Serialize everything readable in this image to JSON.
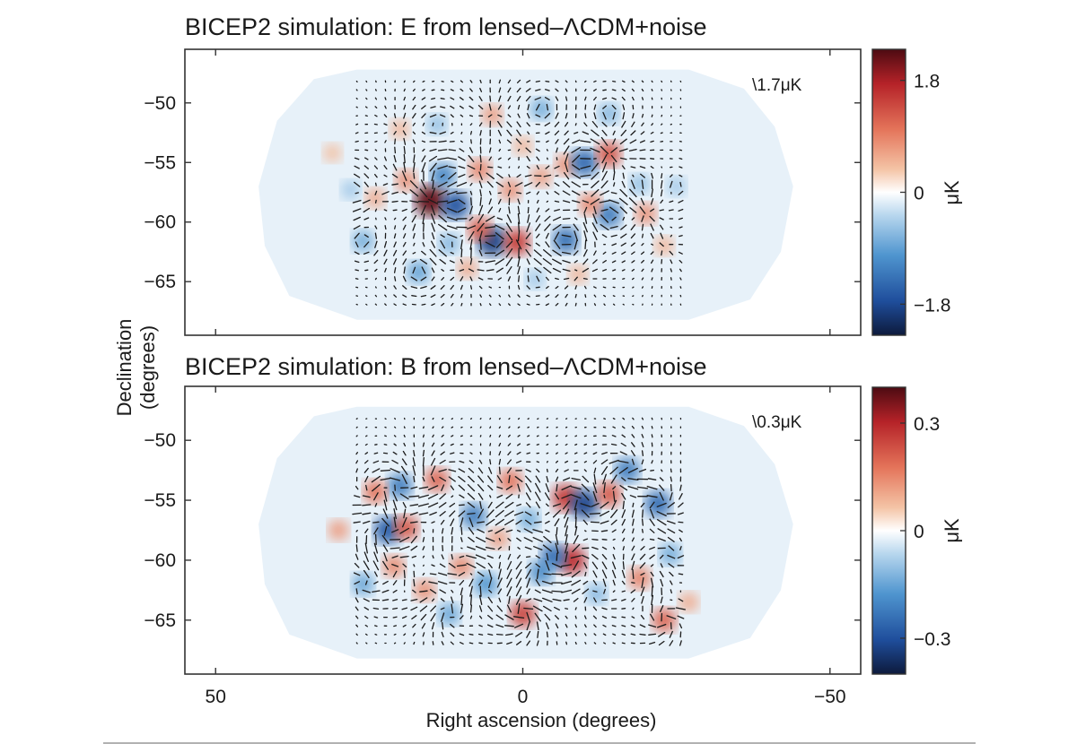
{
  "chart_data": {
    "type": "heatmap",
    "shared_axes": {
      "xlabel": "Right ascension (degrees)",
      "ylabel_line1": "Declination",
      "ylabel_line2": "(degrees)",
      "x_ticks": [
        50,
        0,
        -50
      ],
      "x_tick_labels": [
        "50",
        "0",
        "−50"
      ],
      "xlim": [
        55,
        -55
      ],
      "y_ticks": [
        -50,
        -55,
        -60,
        -65
      ],
      "y_tick_labels": [
        "−50",
        "−55",
        "−60",
        "−65"
      ],
      "ylim": [
        -69.5,
        -45.5
      ]
    },
    "panels": [
      {
        "title": "BICEP2 simulation: E from lensed–ΛCDM+noise",
        "annotation": "\\1.7μK",
        "colorbar_label": "μK",
        "colorbar_ticks": [
          1.8,
          0,
          -1.8
        ],
        "colorbar_tick_labels": [
          "1.8",
          "0",
          "−1.8"
        ],
        "colorbar_range": [
          -2.3,
          2.3
        ],
        "blobs": [
          {
            "ra": 15,
            "dec": -58.2,
            "value": 2.2
          },
          {
            "ra": 11,
            "dec": -58.6,
            "value": -1.7
          },
          {
            "ra": 5,
            "dec": -61.6,
            "value": -1.9
          },
          {
            "ra": 1,
            "dec": -61.7,
            "value": 1.5
          },
          {
            "ra": 7,
            "dec": -60.6,
            "value": 1.2
          },
          {
            "ra": 13,
            "dec": -56.1,
            "value": -1.2
          },
          {
            "ra": 7,
            "dec": -55.6,
            "value": 0.9
          },
          {
            "ra": 2,
            "dec": -57.3,
            "value": 0.8
          },
          {
            "ra": -3,
            "dec": -56.2,
            "value": 0.7
          },
          {
            "ra": -7,
            "dec": -55.2,
            "value": 0.8
          },
          {
            "ra": -10,
            "dec": -55.0,
            "value": -1.5
          },
          {
            "ra": -14,
            "dec": -54.3,
            "value": 1.3
          },
          {
            "ra": -7,
            "dec": -61.5,
            "value": -1.4
          },
          {
            "ra": -14,
            "dec": -59.4,
            "value": -1.3
          },
          {
            "ra": -11,
            "dec": -58.5,
            "value": 0.9
          },
          {
            "ra": -20,
            "dec": -59.3,
            "value": 0.8
          },
          {
            "ra": 19,
            "dec": -56.5,
            "value": 0.8
          },
          {
            "ra": 24,
            "dec": -58.0,
            "value": 0.6
          },
          {
            "ra": 26,
            "dec": -61.6,
            "value": -0.8
          },
          {
            "ra": 17,
            "dec": -64.2,
            "value": -0.9
          },
          {
            "ra": 12,
            "dec": -61.8,
            "value": -0.7
          },
          {
            "ra": 5,
            "dec": -51.0,
            "value": 0.7
          },
          {
            "ra": -3,
            "dec": -50.5,
            "value": -0.8
          },
          {
            "ra": -14,
            "dec": -50.9,
            "value": -0.7
          },
          {
            "ra": 14,
            "dec": -51.8,
            "value": -0.6
          },
          {
            "ra": 20,
            "dec": -52.2,
            "value": 0.5
          },
          {
            "ra": -19,
            "dec": -56.8,
            "value": -0.6
          },
          {
            "ra": 28,
            "dec": -57.3,
            "value": -0.5
          },
          {
            "ra": -23,
            "dec": -62.0,
            "value": 0.5
          },
          {
            "ra": -25,
            "dec": -57.0,
            "value": -0.5
          },
          {
            "ra": 31,
            "dec": -54.2,
            "value": 0.4
          },
          {
            "ra": 9,
            "dec": -63.9,
            "value": 0.6
          },
          {
            "ra": -2,
            "dec": -64.8,
            "value": -0.5
          },
          {
            "ra": -9,
            "dec": -64.4,
            "value": 0.5
          },
          {
            "ra": 0,
            "dec": -53.6,
            "value": 0.5
          }
        ]
      },
      {
        "title": "BICEP2 simulation: B from lensed–ΛCDM+noise",
        "annotation": "\\0.3μK",
        "colorbar_label": "μK",
        "colorbar_ticks": [
          0.3,
          0,
          -0.3
        ],
        "colorbar_tick_labels": [
          "0.3",
          "0",
          "−0.3"
        ],
        "colorbar_range": [
          -0.4,
          0.4
        ],
        "blobs": [
          {
            "ra": 22,
            "dec": -57.5,
            "value": -0.28
          },
          {
            "ra": 19,
            "dec": -57.3,
            "value": 0.22
          },
          {
            "ra": 14,
            "dec": -53.3,
            "value": 0.2
          },
          {
            "ra": 20,
            "dec": -53.8,
            "value": -0.22
          },
          {
            "ra": 8,
            "dec": -56.3,
            "value": -0.22
          },
          {
            "ra": 2,
            "dec": -53.4,
            "value": 0.18
          },
          {
            "ra": -7,
            "dec": -54.8,
            "value": 0.27
          },
          {
            "ra": -10,
            "dec": -55.3,
            "value": -0.32
          },
          {
            "ra": -14,
            "dec": -54.5,
            "value": 0.22
          },
          {
            "ra": -17,
            "dec": -52.5,
            "value": -0.22
          },
          {
            "ra": -22,
            "dec": -55.3,
            "value": -0.25
          },
          {
            "ra": -8,
            "dec": -60.0,
            "value": 0.29
          },
          {
            "ra": -5,
            "dec": -59.7,
            "value": -0.25
          },
          {
            "ra": -3,
            "dec": -61.0,
            "value": -0.2
          },
          {
            "ra": 0,
            "dec": -64.5,
            "value": 0.25
          },
          {
            "ra": 6,
            "dec": -62.0,
            "value": -0.18
          },
          {
            "ra": 10,
            "dec": -60.5,
            "value": 0.15
          },
          {
            "ra": 21,
            "dec": -60.5,
            "value": 0.15
          },
          {
            "ra": 24,
            "dec": -54.3,
            "value": 0.18
          },
          {
            "ra": 26,
            "dec": -62.0,
            "value": -0.15
          },
          {
            "ra": 30,
            "dec": -57.5,
            "value": 0.12
          },
          {
            "ra": -19,
            "dec": -61.5,
            "value": 0.16
          },
          {
            "ra": -24,
            "dec": -59.5,
            "value": -0.14
          },
          {
            "ra": -27,
            "dec": -63.5,
            "value": 0.1
          },
          {
            "ra": 12,
            "dec": -64.5,
            "value": -0.15
          },
          {
            "ra": -12,
            "dec": -62.8,
            "value": -0.12
          },
          {
            "ra": 4,
            "dec": -58.2,
            "value": 0.12
          },
          {
            "ra": -1,
            "dec": -56.6,
            "value": -0.14
          },
          {
            "ra": -23,
            "dec": -65.0,
            "value": 0.2
          },
          {
            "ra": 16,
            "dec": -62.5,
            "value": 0.14
          }
        ]
      }
    ]
  }
}
